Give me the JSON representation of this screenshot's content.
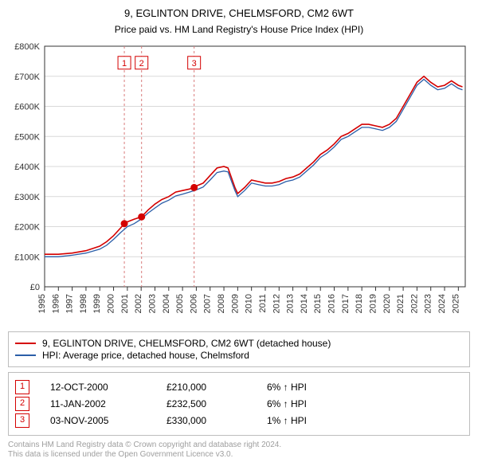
{
  "title_line1": "9, EGLINTON DRIVE, CHELMSFORD, CM2 6WT",
  "title_line2": "Price paid vs. HM Land Registry's House Price Index (HPI)",
  "chart": {
    "type": "line",
    "background_color": "#ffffff",
    "grid_color": "#d9d9d9",
    "axis_color": "#333333",
    "tick_fontsize": 11,
    "tick_color": "#333333",
    "xlim": [
      1995,
      2025.5
    ],
    "years": [
      1995,
      1996,
      1997,
      1998,
      1999,
      2000,
      2001,
      2002,
      2003,
      2004,
      2005,
      2006,
      2007,
      2008,
      2009,
      2010,
      2011,
      2012,
      2013,
      2014,
      2015,
      2016,
      2017,
      2018,
      2019,
      2020,
      2021,
      2022,
      2023,
      2024,
      2025
    ],
    "ylim": [
      0,
      800000
    ],
    "ytick_step": 100000,
    "ytick_labels": [
      "£0",
      "£100K",
      "£200K",
      "£300K",
      "£400K",
      "£500K",
      "£600K",
      "£700K",
      "£800K"
    ],
    "series": [
      {
        "name": "9, EGLINTON DRIVE, CHELMSFORD, CM2 6WT (detached house)",
        "color": "#d40000",
        "line_width": 1.6,
        "x": [
          1995,
          1996,
          1997,
          1998,
          1999,
          1999.5,
          2000,
          2000.5,
          2000.78,
          2001,
          2001.5,
          2002.03,
          2002.5,
          2003,
          2003.5,
          2004,
          2004.5,
          2005,
          2005.5,
          2005.84,
          2006,
          2006.5,
          2007,
          2007.5,
          2008,
          2008.3,
          2008.8,
          2009,
          2009.5,
          2010,
          2010.5,
          2011,
          2011.5,
          2012,
          2012.5,
          2013,
          2013.5,
          2014,
          2014.5,
          2015,
          2015.5,
          2016,
          2016.5,
          2017,
          2017.5,
          2018,
          2018.5,
          2019,
          2019.5,
          2020,
          2020.5,
          2021,
          2021.5,
          2022,
          2022.5,
          2023,
          2023.5,
          2024,
          2024.5,
          2025,
          2025.3
        ],
        "y": [
          108000,
          108000,
          112000,
          120000,
          135000,
          150000,
          170000,
          195000,
          210000,
          216000,
          225000,
          232500,
          255000,
          275000,
          290000,
          300000,
          315000,
          320000,
          325000,
          330000,
          335000,
          345000,
          370000,
          395000,
          400000,
          395000,
          330000,
          310000,
          330000,
          355000,
          350000,
          345000,
          345000,
          350000,
          360000,
          365000,
          375000,
          395000,
          415000,
          440000,
          455000,
          475000,
          500000,
          510000,
          525000,
          540000,
          540000,
          535000,
          530000,
          540000,
          560000,
          600000,
          640000,
          680000,
          700000,
          680000,
          665000,
          670000,
          685000,
          670000,
          665000
        ]
      },
      {
        "name": "HPI: Average price, detached house, Chelmsford",
        "color": "#2b5ea8",
        "line_width": 1.3,
        "x": [
          1995,
          1996,
          1997,
          1998,
          1999,
          1999.5,
          2000,
          2000.5,
          2001,
          2001.5,
          2002,
          2002.5,
          2003,
          2003.5,
          2004,
          2004.5,
          2005,
          2005.5,
          2006,
          2006.5,
          2007,
          2007.5,
          2008,
          2008.3,
          2008.8,
          2009,
          2009.5,
          2010,
          2010.5,
          2011,
          2011.5,
          2012,
          2012.5,
          2013,
          2013.5,
          2014,
          2014.5,
          2015,
          2015.5,
          2016,
          2016.5,
          2017,
          2017.5,
          2018,
          2018.5,
          2019,
          2019.5,
          2020,
          2020.5,
          2021,
          2021.5,
          2022,
          2022.5,
          2023,
          2023.5,
          2024,
          2024.5,
          2025,
          2025.3
        ],
        "y": [
          100000,
          100000,
          105000,
          112000,
          125000,
          138000,
          158000,
          180000,
          200000,
          210000,
          225000,
          245000,
          262000,
          278000,
          288000,
          302000,
          308000,
          315000,
          322000,
          332000,
          355000,
          380000,
          385000,
          382000,
          320000,
          300000,
          320000,
          345000,
          340000,
          335000,
          335000,
          340000,
          350000,
          355000,
          365000,
          385000,
          405000,
          430000,
          445000,
          465000,
          490000,
          500000,
          515000,
          530000,
          530000,
          525000,
          520000,
          530000,
          550000,
          590000,
          630000,
          670000,
          690000,
          670000,
          655000,
          660000,
          675000,
          660000,
          655000
        ]
      }
    ],
    "sale_markers": [
      {
        "n": 1,
        "x": 2000.78,
        "y": 210000,
        "label_y": 745000,
        "color": "#d40000"
      },
      {
        "n": 2,
        "x": 2002.03,
        "y": 232500,
        "label_y": 745000,
        "color": "#d40000"
      },
      {
        "n": 3,
        "x": 2005.84,
        "y": 330000,
        "label_y": 745000,
        "color": "#d40000"
      }
    ],
    "marker_radius": 4.5,
    "marker_fill": "#d40000",
    "vline_color": "#d97c7c",
    "vline_dash": "3,3",
    "label_box_border": "#d40000",
    "label_box_fill": "#ffffff",
    "label_box_size": 16,
    "label_fontsize": 11
  },
  "legend": {
    "items": [
      {
        "label": "9, EGLINTON DRIVE, CHELMSFORD, CM2 6WT (detached house)",
        "color": "#d40000"
      },
      {
        "label": "HPI: Average price, detached house, Chelmsford",
        "color": "#2b5ea8"
      }
    ]
  },
  "sales_table": {
    "marker_color": "#d40000",
    "arrow": "↑",
    "suffix": "HPI",
    "rows": [
      {
        "n": "1",
        "date": "12-OCT-2000",
        "price": "£210,000",
        "pct": "6%"
      },
      {
        "n": "2",
        "date": "11-JAN-2002",
        "price": "£232,500",
        "pct": "6%"
      },
      {
        "n": "3",
        "date": "03-NOV-2005",
        "price": "£330,000",
        "pct": "1%"
      }
    ]
  },
  "footnote_line1": "Contains HM Land Registry data © Crown copyright and database right 2024.",
  "footnote_line2": "This data is licensed under the Open Government Licence v3.0."
}
